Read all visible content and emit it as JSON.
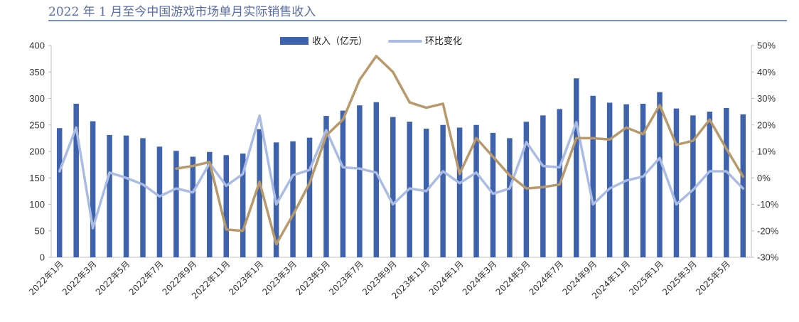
{
  "header": {
    "title": "2022 年 1 月至今中国游戏市场单月实际销售收入"
  },
  "colors": {
    "bars": "#3f62ad",
    "mom_line": "#aabce3",
    "extra_line": "#b8996a",
    "rule": "#7a8cc0"
  },
  "chart_data": {
    "type": "bar",
    "title": "2022 年 1 月至今中国游戏市场单月实际销售收入",
    "legend_position": "top-center",
    "grid": false,
    "categories": [
      "2022年1月",
      "2022年2月",
      "2022年3月",
      "2022年4月",
      "2022年5月",
      "2022年6月",
      "2022年7月",
      "2022年8月",
      "2022年9月",
      "2022年10月",
      "2022年11月",
      "2022年12月",
      "2023年1月",
      "2023年2月",
      "2023年3月",
      "2023年4月",
      "2023年5月",
      "2023年6月",
      "2023年7月",
      "2023年8月",
      "2023年9月",
      "2023年10月",
      "2023年11月",
      "2023年12月",
      "2024年1月",
      "2024年2月",
      "2024年3月",
      "2024年4月",
      "2024年5月",
      "2024年6月",
      "2024年7月",
      "2024年8月",
      "2024年9月",
      "2024年10月",
      "2024年11月",
      "2024年12月",
      "2025年1月",
      "2025年2月",
      "2025年3月",
      "2025年4月",
      "2025年5月",
      "2025年6月"
    ],
    "x_tick_labels": [
      "2022年1月",
      "2022年3月",
      "2022年5月",
      "2022年7月",
      "2022年9月",
      "2022年11月",
      "2023年1月",
      "2023年3月",
      "2023年5月",
      "2023年7月",
      "2023年9月",
      "2023年11月",
      "2024年1月",
      "2024年3月",
      "2024年5月",
      "2024年7月",
      "2024年9月",
      "2024年11月",
      "2025年1月",
      "2025年3月",
      "2025年5月"
    ],
    "y_left": {
      "ticks": [
        "0",
        "50",
        "100",
        "150",
        "200",
        "250",
        "300",
        "350",
        "400"
      ],
      "ylim": [
        0,
        400
      ]
    },
    "y_right": {
      "ticks": [
        "-30%",
        "-20%",
        "-10%",
        "0%",
        "10%",
        "20%",
        "30%",
        "40%",
        "50%"
      ],
      "ylim": [
        -30,
        50
      ]
    },
    "series": [
      {
        "name": "收入（亿元）",
        "type": "bar",
        "axis": "left",
        "values": [
          244,
          290,
          257,
          231,
          230,
          225,
          209,
          201,
          190,
          199,
          193,
          196,
          242,
          217,
          219,
          226,
          267,
          277,
          287,
          293,
          265,
          256,
          243,
          250,
          245,
          250,
          235,
          225,
          256,
          268,
          280,
          338,
          305,
          292,
          289,
          290,
          312,
          281,
          268,
          275,
          282,
          270
        ]
      },
      {
        "name": "环比变化",
        "type": "line",
        "axis": "right",
        "values": [
          2.5,
          19,
          -19,
          2,
          0,
          -2.5,
          -7,
          -4,
          -5.5,
          5.5,
          -3,
          1.5,
          23.5,
          -10,
          1,
          3,
          18,
          4,
          3.5,
          2,
          -10,
          -4,
          -5,
          2.5,
          -2,
          2,
          -6,
          -4,
          13.5,
          4.5,
          4,
          21,
          -10,
          -4,
          -1,
          0.5,
          7.5,
          -10,
          -4.5,
          2.5,
          2.5,
          -4
        ]
      },
      {
        "type": "line",
        "axis": "right",
        "values": [
          null,
          null,
          null,
          null,
          null,
          null,
          null,
          3.5,
          4.5,
          6,
          -19.5,
          -20,
          -1.5,
          -25,
          -14,
          -2,
          16,
          22,
          37,
          46,
          40,
          28.5,
          26.5,
          28,
          1.5,
          15,
          8,
          1,
          -4,
          -3.5,
          -2.5,
          15,
          15,
          14.5,
          19,
          16.5,
          27.5,
          12.5,
          14,
          22,
          11,
          0.5
        ]
      }
    ]
  }
}
